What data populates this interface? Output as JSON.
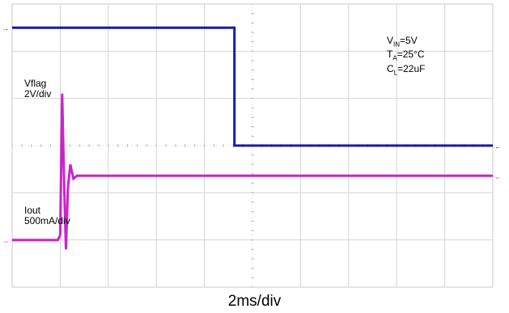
{
  "chart_data": {
    "type": "line",
    "title": "",
    "xlabel": "2ms/div",
    "ylabel": "",
    "x_unit": "ms",
    "xlim": [
      0,
      20
    ],
    "grid": true,
    "grid_divisions": {
      "x": 10,
      "y": 6
    },
    "series": [
      {
        "name": "Vflag",
        "scale": "2V/div",
        "color": "#1a1aa8",
        "units": "V",
        "ylim": [
          -6,
          6
        ],
        "x": [
          0,
          9.25,
          9.25,
          20
        ],
        "y": [
          5,
          5,
          0,
          0
        ]
      },
      {
        "name": "Iout",
        "scale": "500mA/div",
        "color": "#cc22cc",
        "units": "A",
        "ylim": [
          -0.5,
          2.5
        ],
        "x": [
          0,
          1.9,
          2.0,
          2.08,
          2.16,
          2.24,
          2.32,
          2.42,
          2.55,
          2.7,
          20
        ],
        "y": [
          0,
          0,
          0.05,
          1.55,
          0.6,
          -0.1,
          0.55,
          0.8,
          0.65,
          0.68,
          0.68
        ]
      }
    ],
    "annotations": {
      "vin": {
        "main": "V",
        "sub": "IN",
        "rest": "=5V"
      },
      "ta": {
        "main": "T",
        "sub": "A",
        "rest": "=25°C"
      },
      "cl": {
        "main": "C",
        "sub": "L",
        "rest": "=22uF"
      }
    }
  }
}
